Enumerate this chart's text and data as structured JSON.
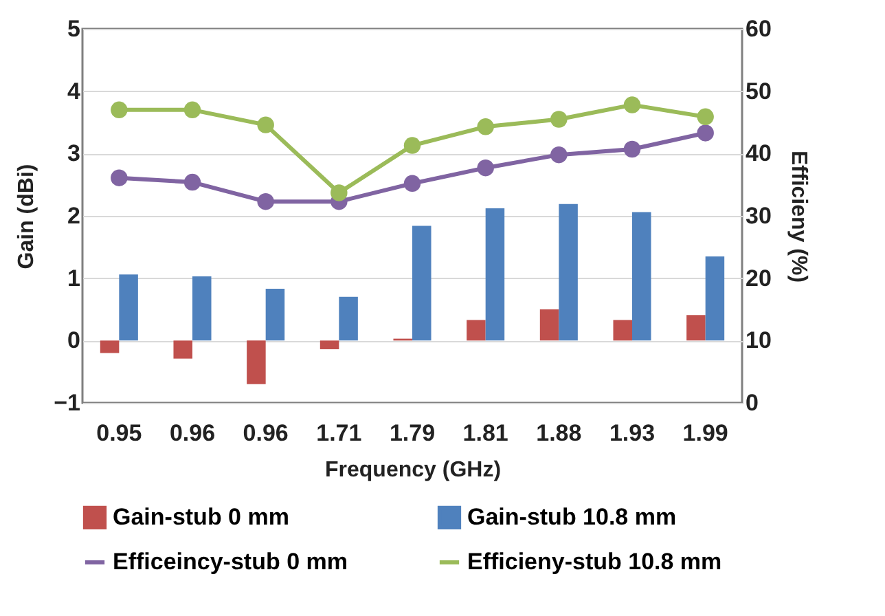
{
  "chart_data": {
    "type": "bar",
    "xlabel": "Frequency (GHz)",
    "ylabel": "Gain (dBi)",
    "y2label": "Efficieny (%)",
    "categories": [
      "0.95",
      "0.96",
      "0.96",
      "1.71",
      "1.79",
      "1.81",
      "1.88",
      "1.93",
      "1.99"
    ],
    "series": [
      {
        "name": "Gain-stub 0 mm",
        "color": "#c0504d",
        "values": [
          -0.2,
          -0.29,
          -0.7,
          -0.14,
          0.03,
          0.33,
          0.5,
          0.33,
          0.41
        ]
      },
      {
        "name": "Gain-stub 10.8 mm",
        "color": "#4f81bd",
        "values": [
          1.06,
          1.03,
          0.83,
          0.7,
          1.84,
          2.12,
          2.19,
          2.06,
          1.35
        ]
      },
      {
        "name": "Efficeincy-stub 0 mm",
        "type": "line",
        "axis": "y2",
        "color": "#8064a2",
        "values": [
          36.1,
          35.4,
          32.3,
          32.3,
          35.2,
          37.7,
          39.8,
          40.7,
          43.3
        ]
      },
      {
        "name": "Efficieny-stub 10.8 mm",
        "type": "line",
        "axis": "y2",
        "color": "#9bbb59",
        "values": [
          47.0,
          47.0,
          44.6,
          33.7,
          41.3,
          44.3,
          45.5,
          47.8,
          45.9
        ]
      }
    ],
    "ylim": [
      -1,
      5
    ],
    "yticks": [
      -1,
      0,
      1,
      2,
      3,
      4,
      5
    ],
    "y2lim": [
      0,
      60
    ],
    "y2ticks": [
      0,
      10,
      20,
      30,
      40,
      50,
      60
    ],
    "grid": "y",
    "legend": "bottom",
    "marker": "circle",
    "line_style": "solid"
  }
}
